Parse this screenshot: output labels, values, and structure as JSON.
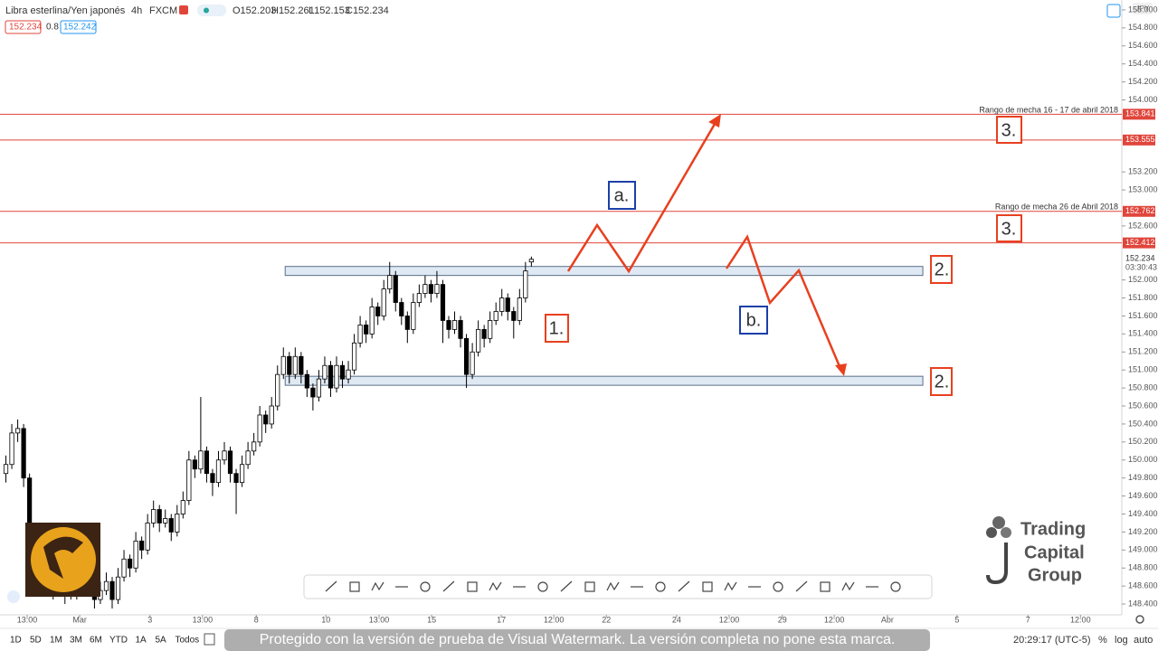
{
  "header": {
    "symbol": "Libra esterlina/Yen japonés",
    "interval": "4h",
    "source": "FXCM",
    "ohlc_labels": [
      "O152.203",
      "H152.261",
      "L152.153",
      "C152.234"
    ],
    "bid": "152.234",
    "spread": "0.8",
    "ask": "152.242",
    "currency": "JPY"
  },
  "chart_data": {
    "type": "candlestick",
    "x": [
      1,
      2,
      3,
      4,
      5,
      6,
      7,
      8,
      9,
      10,
      11,
      12,
      13,
      14,
      15,
      16,
      17,
      18,
      19,
      20,
      21,
      22,
      23,
      24,
      25,
      26,
      27,
      28,
      29,
      30,
      31,
      32,
      33,
      34,
      35,
      36,
      37,
      38,
      39,
      40,
      41,
      42,
      43,
      44,
      45,
      46,
      47,
      48,
      49,
      50,
      51,
      52,
      53,
      54,
      55,
      56,
      57,
      58,
      59,
      60,
      61,
      62,
      63,
      64,
      65,
      66,
      67,
      68,
      69,
      70,
      71,
      72,
      73,
      74,
      75,
      76,
      77,
      78,
      79,
      80,
      81,
      82,
      83,
      84,
      85,
      86,
      87,
      88,
      89,
      90
    ],
    "ohlc": [
      [
        149.85,
        150.05,
        149.75,
        149.95
      ],
      [
        149.95,
        150.4,
        149.9,
        150.3
      ],
      [
        150.3,
        150.45,
        150.2,
        150.35
      ],
      [
        150.35,
        150.4,
        149.7,
        149.8
      ],
      [
        149.8,
        149.85,
        149.1,
        149.2
      ],
      [
        149.2,
        149.3,
        148.7,
        148.8
      ],
      [
        148.8,
        148.9,
        148.5,
        148.6
      ],
      [
        148.6,
        148.8,
        148.5,
        148.7
      ],
      [
        148.7,
        148.75,
        148.45,
        148.55
      ],
      [
        148.55,
        148.75,
        148.5,
        148.65
      ],
      [
        148.65,
        148.7,
        148.4,
        148.5
      ],
      [
        148.5,
        148.7,
        148.45,
        148.6
      ],
      [
        148.6,
        148.65,
        148.45,
        148.55
      ],
      [
        148.55,
        148.8,
        148.5,
        148.7
      ],
      [
        148.7,
        148.75,
        148.5,
        148.6
      ],
      [
        148.6,
        148.65,
        148.35,
        148.45
      ],
      [
        148.45,
        148.65,
        148.4,
        148.55
      ],
      [
        148.55,
        148.75,
        148.5,
        148.65
      ],
      [
        148.65,
        148.7,
        148.35,
        148.45
      ],
      [
        148.45,
        148.8,
        148.4,
        148.7
      ],
      [
        148.7,
        149.0,
        148.65,
        148.9
      ],
      [
        148.9,
        148.95,
        148.7,
        148.8
      ],
      [
        148.8,
        149.2,
        148.75,
        149.1
      ],
      [
        149.1,
        149.15,
        148.9,
        149.0
      ],
      [
        149.0,
        149.4,
        148.95,
        149.3
      ],
      [
        149.3,
        149.55,
        149.25,
        149.45
      ],
      [
        149.45,
        149.5,
        149.2,
        149.3
      ],
      [
        149.3,
        149.45,
        149.25,
        149.35
      ],
      [
        149.35,
        149.4,
        149.1,
        149.2
      ],
      [
        149.2,
        149.5,
        149.15,
        149.4
      ],
      [
        149.4,
        149.65,
        149.35,
        149.55
      ],
      [
        149.55,
        150.1,
        149.5,
        150.0
      ],
      [
        150.0,
        150.05,
        149.8,
        149.9
      ],
      [
        149.9,
        150.7,
        149.85,
        150.1
      ],
      [
        150.1,
        150.15,
        149.75,
        149.85
      ],
      [
        149.85,
        149.9,
        149.6,
        149.75
      ],
      [
        149.75,
        150.1,
        149.7,
        150.0
      ],
      [
        150.0,
        150.2,
        149.95,
        150.1
      ],
      [
        150.1,
        150.15,
        149.75,
        149.85
      ],
      [
        149.85,
        149.9,
        149.4,
        149.75
      ],
      [
        149.75,
        150.05,
        149.7,
        149.95
      ],
      [
        149.95,
        150.2,
        149.9,
        150.1
      ],
      [
        150.1,
        150.3,
        150.05,
        150.2
      ],
      [
        150.2,
        150.6,
        150.15,
        150.5
      ],
      [
        150.5,
        150.55,
        150.3,
        150.4
      ],
      [
        150.4,
        150.7,
        150.35,
        150.6
      ],
      [
        150.6,
        151.05,
        150.55,
        150.95
      ],
      [
        150.95,
        151.25,
        150.9,
        151.15
      ],
      [
        151.15,
        151.2,
        150.85,
        150.95
      ],
      [
        150.95,
        151.25,
        150.9,
        151.15
      ],
      [
        151.15,
        151.2,
        150.85,
        150.95
      ],
      [
        150.95,
        151.0,
        150.7,
        150.8
      ],
      [
        150.8,
        150.85,
        150.55,
        150.7
      ],
      [
        150.7,
        151.0,
        150.65,
        150.9
      ],
      [
        150.9,
        151.15,
        150.85,
        151.05
      ],
      [
        151.05,
        151.1,
        150.7,
        150.8
      ],
      [
        150.8,
        151.15,
        150.75,
        151.05
      ],
      [
        151.05,
        151.1,
        150.8,
        150.9
      ],
      [
        150.9,
        151.1,
        150.85,
        151.0
      ],
      [
        151.0,
        151.4,
        150.95,
        151.3
      ],
      [
        151.3,
        151.6,
        151.25,
        151.5
      ],
      [
        151.5,
        151.55,
        151.3,
        151.4
      ],
      [
        151.4,
        151.8,
        151.35,
        151.7
      ],
      [
        151.7,
        151.75,
        151.5,
        151.6
      ],
      [
        151.6,
        152.0,
        151.55,
        151.9
      ],
      [
        151.9,
        152.2,
        151.85,
        152.05
      ],
      [
        152.05,
        152.1,
        151.65,
        151.75
      ],
      [
        151.75,
        151.8,
        151.5,
        151.6
      ],
      [
        151.6,
        151.65,
        151.3,
        151.45
      ],
      [
        151.45,
        151.85,
        151.4,
        151.75
      ],
      [
        151.75,
        151.95,
        151.7,
        151.85
      ],
      [
        151.85,
        152.05,
        151.8,
        151.95
      ],
      [
        151.95,
        152.0,
        151.75,
        151.85
      ],
      [
        151.85,
        152.1,
        151.8,
        151.95
      ],
      [
        151.95,
        152.0,
        151.3,
        151.55
      ],
      [
        151.55,
        151.6,
        151.35,
        151.45
      ],
      [
        151.45,
        151.65,
        151.4,
        151.55
      ],
      [
        151.55,
        151.6,
        151.25,
        151.35
      ],
      [
        151.35,
        151.4,
        150.8,
        150.95
      ],
      [
        150.95,
        151.3,
        150.9,
        151.2
      ],
      [
        151.2,
        151.55,
        151.15,
        151.45
      ],
      [
        151.45,
        151.5,
        151.25,
        151.35
      ],
      [
        151.35,
        151.65,
        151.3,
        151.55
      ],
      [
        151.55,
        151.75,
        151.5,
        151.65
      ],
      [
        151.65,
        151.9,
        151.6,
        151.8
      ],
      [
        151.8,
        151.85,
        151.55,
        151.65
      ],
      [
        151.65,
        151.7,
        151.35,
        151.55
      ],
      [
        151.55,
        151.9,
        151.5,
        151.8
      ],
      [
        151.8,
        152.2,
        151.75,
        152.1
      ],
      [
        152.2,
        152.26,
        152.15,
        152.23
      ]
    ],
    "up_color": "#ffffff",
    "down_color": "#000000",
    "xlim": [
      0,
      190
    ],
    "ylim": [
      148.28,
      155.11
    ],
    "xticks": [
      {
        "value": 4.6,
        "label": "13:00"
      },
      {
        "value": 13.5,
        "label": "Mar"
      },
      {
        "value": 25.4,
        "label": "3"
      },
      {
        "value": 34.3,
        "label": "13:00"
      },
      {
        "value": 43.4,
        "label": "8"
      },
      {
        "value": 55.2,
        "label": "10"
      },
      {
        "value": 64.2,
        "label": "13:00"
      },
      {
        "value": 73.1,
        "label": "15"
      },
      {
        "value": 84.9,
        "label": "17"
      },
      {
        "value": 93.8,
        "label": "12:00"
      },
      {
        "value": 102.7,
        "label": "22"
      },
      {
        "value": 114.6,
        "label": "24"
      },
      {
        "value": 123.5,
        "label": "12:00"
      },
      {
        "value": 132.5,
        "label": "29"
      },
      {
        "value": 141.3,
        "label": "12:00"
      },
      {
        "value": 150.3,
        "label": "Abr"
      },
      {
        "value": 162.1,
        "label": "5"
      },
      {
        "value": 174.1,
        "label": "7"
      },
      {
        "value": 183.0,
        "label": "12:00"
      }
    ],
    "yticks": [
      {
        "value": 148.4,
        "label": "148.400"
      },
      {
        "value": 148.6,
        "label": "148.600"
      },
      {
        "value": 148.8,
        "label": "148.800"
      },
      {
        "value": 149.0,
        "label": "149.000"
      },
      {
        "value": 149.2,
        "label": "149.200"
      },
      {
        "value": 149.4,
        "label": "149.400"
      },
      {
        "value": 149.6,
        "label": "149.600"
      },
      {
        "value": 149.8,
        "label": "149.800"
      },
      {
        "value": 150.0,
        "label": "150.000"
      },
      {
        "value": 150.2,
        "label": "150.200"
      },
      {
        "value": 150.4,
        "label": "150.400"
      },
      {
        "value": 150.6,
        "label": "150.600"
      },
      {
        "value": 150.8,
        "label": "150.800"
      },
      {
        "value": 151.0,
        "label": "151.000"
      },
      {
        "value": 151.2,
        "label": "151.200"
      },
      {
        "value": 151.4,
        "label": "151.400"
      },
      {
        "value": 151.6,
        "label": "151.600"
      },
      {
        "value": 151.8,
        "label": "151.800"
      },
      {
        "value": 152.0,
        "label": "152.000"
      },
      {
        "value": 152.6,
        "label": "152.600"
      },
      {
        "value": 153.0,
        "label": "153.000"
      },
      {
        "value": 153.2,
        "label": "153.200"
      },
      {
        "value": 154.0,
        "label": "154.000"
      },
      {
        "value": 154.2,
        "label": "154.200"
      },
      {
        "value": 154.4,
        "label": "154.400"
      },
      {
        "value": 154.6,
        "label": "154.600"
      },
      {
        "value": 154.8,
        "label": "154.800"
      },
      {
        "value": 155.0,
        "label": "155.000"
      }
    ],
    "levels": [
      153.841,
      153.555,
      152.762,
      152.412
    ],
    "level_color": "#e0453b",
    "last_price": 152.234,
    "countdown": "03:30:43",
    "zones": [
      {
        "x": [
          48.3,
          156.3
        ],
        "y": [
          152.05,
          152.15
        ]
      },
      {
        "x": [
          48.3,
          156.3
        ],
        "y": [
          150.83,
          150.93
        ]
      }
    ],
    "annotations": [
      "Rango de mecha 16 - 17 de abril 2018",
      "Rango de mecha 26 de Abril 2018",
      "1.",
      "2.",
      "2.",
      "3.",
      "3.",
      "a.",
      "b."
    ]
  },
  "footer": {
    "ranges": [
      "1D",
      "5D",
      "1M",
      "3M",
      "6M",
      "YTD",
      "1A",
      "5A",
      "Todos"
    ],
    "clock": "20:29:17 (UTC-5)",
    "options": [
      "%",
      "log",
      "auto"
    ],
    "watermark": "Protegido con la versión de prueba de Visual Watermark. La versión completa no pone esta marca."
  },
  "logo": {
    "lines": [
      "Trading",
      "Capital",
      "Group"
    ]
  }
}
